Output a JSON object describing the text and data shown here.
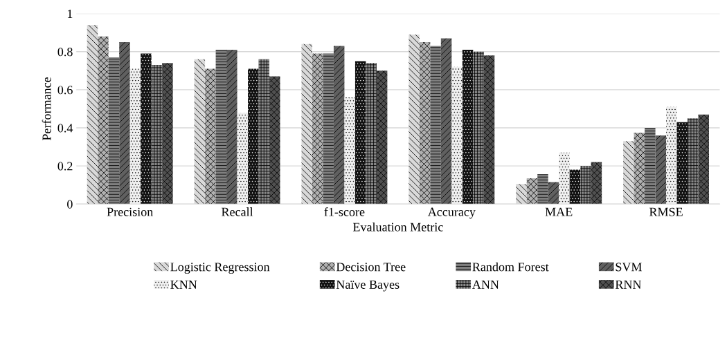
{
  "chart_data": {
    "type": "bar",
    "xlabel": "Evaluation Metric",
    "ylabel": "Performance",
    "categories": [
      "Precision",
      "Recall",
      "f1-score",
      "Accuracy",
      "MAE",
      "RMSE"
    ],
    "series": [
      {
        "name": "Logistic Regression",
        "color": "#d9d9d9",
        "values": [
          0.94,
          0.76,
          0.84,
          0.89,
          0.105,
          0.33
        ]
      },
      {
        "name": "Decision Tree",
        "color": "#b0b0b0",
        "values": [
          0.88,
          0.71,
          0.79,
          0.85,
          0.135,
          0.375
        ]
      },
      {
        "name": "Random Forest",
        "color": "#808080",
        "values": [
          0.77,
          0.81,
          0.79,
          0.83,
          0.157,
          0.4
        ]
      },
      {
        "name": "SVM",
        "color": "#606060",
        "values": [
          0.85,
          0.81,
          0.83,
          0.87,
          0.115,
          0.36
        ]
      },
      {
        "name": "KNN",
        "color": "#f0f0f0",
        "values": [
          0.71,
          0.48,
          0.56,
          0.72,
          0.27,
          0.51
        ]
      },
      {
        "name": "Naïve Bayes",
        "color": "#111111",
        "values": [
          0.79,
          0.71,
          0.75,
          0.81,
          0.18,
          0.43
        ]
      },
      {
        "name": "ANN",
        "color": "#888888",
        "values": [
          0.73,
          0.76,
          0.74,
          0.8,
          0.2,
          0.45
        ]
      },
      {
        "name": "RNN",
        "color": "#505050",
        "values": [
          0.74,
          0.67,
          0.7,
          0.78,
          0.22,
          0.47
        ]
      }
    ],
    "ylim": [
      0,
      1
    ],
    "yticks": [
      {
        "value": 0,
        "label": "0"
      },
      0.2,
      0.4,
      0.6,
      0.8,
      {
        "value": 1,
        "label": "1"
      }
    ],
    "grid": "y",
    "legend": "bottom"
  }
}
